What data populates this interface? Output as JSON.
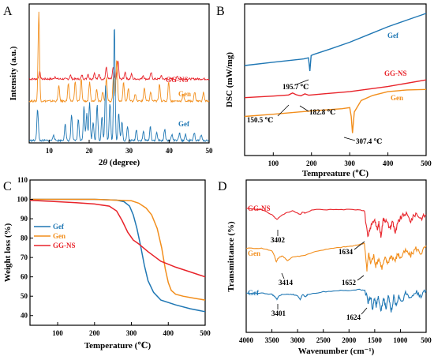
{
  "colors": {
    "gef": "#1f77b4",
    "gen": "#f28e1c",
    "ggns": "#e8232a",
    "axis": "#000000"
  },
  "chart_data": [
    {
      "panel": "A",
      "type": "line",
      "xlabel": "2θ (degree)",
      "ylabel": "Intensity (a.u.)",
      "xlim": [
        5,
        50
      ],
      "xticks": [
        "10",
        "20",
        "30",
        "40",
        "50"
      ],
      "grid": false,
      "series": [
        {
          "name": "GG-NS",
          "color": "#e8232a",
          "baseline": 100,
          "x": [
            7.6,
            11.5,
            15.3,
            18.2,
            19.7,
            21.3,
            22.5,
            24.3,
            26.0,
            27.2,
            29.0,
            30.6,
            33.5,
            35.5,
            38.0,
            42.1
          ],
          "y": [
            12,
            4,
            6,
            6,
            8,
            10,
            8,
            20,
            18,
            30,
            12,
            8,
            6,
            10,
            5,
            4
          ]
        },
        {
          "name": "Gen",
          "color": "#f28e1c",
          "baseline": 50,
          "x": [
            7.4,
            12.4,
            14.8,
            16.5,
            18.0,
            20.1,
            21.9,
            23.4,
            24.3,
            26.1,
            26.9,
            28.6,
            29.8,
            31.5,
            33.8,
            35.4,
            37.6,
            39.9,
            43.5,
            46.4,
            48.6
          ],
          "y": [
            145,
            25,
            28,
            32,
            36,
            30,
            20,
            16,
            38,
            42,
            68,
            30,
            20,
            12,
            22,
            15,
            28,
            32,
            12,
            15,
            14
          ]
        },
        {
          "name": "Gef",
          "color": "#1f77b4",
          "baseline": 0,
          "x": [
            7.1,
            11.1,
            14.0,
            15.6,
            17.3,
            18.7,
            19.4,
            20.1,
            21.0,
            22.0,
            23.2,
            24.1,
            25.2,
            26.3,
            27.4,
            28.2,
            29.6,
            31.8,
            33.6,
            35.3,
            36.9,
            38.9,
            40.7,
            42.6,
            44.1,
            46.3,
            48.0
          ],
          "y": [
            52,
            10,
            28,
            42,
            35,
            55,
            45,
            62,
            30,
            58,
            40,
            90,
            60,
            190,
            45,
            30,
            22,
            18,
            15,
            22,
            12,
            18,
            10,
            12,
            10,
            12,
            9
          ]
        }
      ]
    },
    {
      "panel": "B",
      "type": "line",
      "xlabel": "Tempreature (℃)",
      "ylabel": "DSC (mW/mg)",
      "xlim": [
        25,
        500
      ],
      "xticks": [
        "100",
        "200",
        "300",
        "400",
        "500"
      ],
      "grid": false,
      "series": [
        {
          "name": "Gef",
          "color": "#1f77b4",
          "x": [
            25,
            100,
            180,
            192,
            195.7,
            199,
            206,
            250,
            300,
            350,
            400,
            450,
            500
          ],
          "y": [
            2.0,
            2.15,
            2.3,
            2.35,
            1.75,
            2.45,
            2.5,
            2.75,
            3.05,
            3.4,
            3.75,
            4.05,
            4.35
          ]
        },
        {
          "name": "GG-NS",
          "color": "#e8232a",
          "x": [
            25,
            100,
            140,
            150.5,
            160,
            172,
            182.8,
            193,
            230,
            300,
            400,
            500
          ],
          "y": [
            0.55,
            0.62,
            0.67,
            0.76,
            0.68,
            0.63,
            0.72,
            0.66,
            0.72,
            0.82,
            1.05,
            1.35
          ]
        },
        {
          "name": "Gen",
          "color": "#f28e1c",
          "x": [
            25,
            100,
            200,
            280,
            300,
            304,
            307.4,
            312,
            330,
            360,
            400,
            450,
            500
          ],
          "y": [
            -0.3,
            -0.2,
            -0.05,
            0.05,
            0.1,
            -0.3,
            -1.05,
            -0.1,
            0.42,
            0.65,
            0.82,
            0.9,
            0.92
          ]
        }
      ],
      "annotations": [
        "195.7 ℃",
        "150.5 ℃",
        "182.8 ℃",
        "307.4 ℃"
      ]
    },
    {
      "panel": "C",
      "type": "line",
      "xlabel": "Temperature (℃)",
      "ylabel": "Weight loss (%)",
      "xlim": [
        25,
        500
      ],
      "ylim": [
        35,
        110
      ],
      "xticks": [
        "100",
        "200",
        "300",
        "400",
        "500"
      ],
      "yticks": [
        "40",
        "50",
        "60",
        "70",
        "80",
        "90",
        "100",
        "110"
      ],
      "grid": false,
      "legend": "upper-left",
      "series": [
        {
          "name": "Gef",
          "color": "#1f77b4",
          "x": [
            25,
            100,
            200,
            260,
            280,
            295,
            305,
            315,
            325,
            335,
            345,
            360,
            380,
            420,
            460,
            500
          ],
          "y": [
            100,
            100,
            100,
            99.6,
            98.8,
            96.5,
            92,
            85,
            76,
            66,
            58,
            52,
            48,
            45.5,
            43.5,
            42
          ]
        },
        {
          "name": "Gen",
          "color": "#f28e1c",
          "x": [
            25,
            100,
            200,
            300,
            320,
            340,
            355,
            370,
            382,
            392,
            400,
            408,
            420,
            440,
            470,
            500
          ],
          "y": [
            100,
            100,
            100,
            99.3,
            98,
            95.5,
            92,
            85,
            75,
            64,
            57,
            53,
            51,
            50,
            49,
            48
          ]
        },
        {
          "name": "GG-NS",
          "color": "#e8232a",
          "x": [
            25,
            80,
            150,
            200,
            240,
            260,
            275,
            290,
            305,
            320,
            345,
            380,
            400,
            420,
            460,
            500
          ],
          "y": [
            99.5,
            99,
            98.3,
            97.6,
            96.5,
            94,
            89,
            83,
            79,
            77,
            73,
            68,
            66.5,
            65,
            62.5,
            60
          ]
        }
      ]
    },
    {
      "panel": "D",
      "type": "line",
      "xlabel": "Wavenumber (cm⁻¹)",
      "ylabel": "Transmittance (%)",
      "xlim": [
        4000,
        500
      ],
      "xticks": [
        "4000",
        "3500",
        "3000",
        "2500",
        "2000",
        "1500",
        "1000",
        "500"
      ],
      "grid": false,
      "series": [
        {
          "name": "GG-NS",
          "color": "#e8232a",
          "x": [
            4000,
            3700,
            3500,
            3402,
            3300,
            3100,
            2950,
            2900,
            2850,
            2700,
            2300,
            2000,
            1800,
            1700,
            1634,
            1580,
            1500,
            1450,
            1420,
            1380,
            1330,
            1280,
            1200,
            1150,
            1100,
            1050,
            1000,
            900,
            800,
            700,
            600,
            500
          ],
          "y": [
            100,
            99,
            95,
            91,
            95,
            98,
            95,
            97,
            96,
            99,
            99,
            99,
            99,
            98,
            76,
            85,
            92,
            82,
            88,
            78,
            92,
            90,
            84,
            90,
            80,
            88,
            92,
            96,
            90,
            96,
            92,
            95
          ]
        },
        {
          "name": "Gen",
          "color": "#f28e1c",
          "x": [
            4000,
            3700,
            3500,
            3450,
            3414,
            3380,
            3300,
            3200,
            3100,
            2900,
            2600,
            2300,
            2100,
            1900,
            1800,
            1700,
            1652,
            1620,
            1580,
            1520,
            1480,
            1420,
            1360,
            1300,
            1250,
            1180,
            1100,
            1050,
            1000,
            900,
            800,
            700,
            600,
            500
          ],
          "y": [
            68,
            68,
            66,
            62,
            57,
            60,
            62,
            58,
            61,
            62,
            66,
            68,
            69,
            70,
            71,
            72,
            50,
            64,
            56,
            62,
            54,
            60,
            52,
            60,
            56,
            62,
            58,
            64,
            60,
            66,
            62,
            68,
            64,
            70
          ]
        },
        {
          "name": "Gef",
          "color": "#1f77b4",
          "x": [
            4000,
            3700,
            3500,
            3440,
            3401,
            3360,
            3300,
            3200,
            3100,
            3000,
            2950,
            2900,
            2850,
            2800,
            2500,
            2200,
            2000,
            1800,
            1700,
            1650,
            1624,
            1580,
            1540,
            1500,
            1470,
            1430,
            1380,
            1330,
            1280,
            1230,
            1180,
            1130,
            1080,
            1030,
            980,
            900,
            800,
            700,
            600,
            500
          ],
          "y": [
            32,
            32,
            31,
            29,
            27,
            30,
            31,
            31,
            31,
            30,
            27,
            31,
            29,
            31,
            33,
            34,
            34,
            35,
            34,
            30,
            24,
            30,
            19,
            29,
            21,
            30,
            17,
            28,
            20,
            31,
            16,
            29,
            22,
            30,
            25,
            32,
            28,
            33,
            30,
            34
          ]
        }
      ],
      "annotations": [
        "3402",
        "1634",
        "3414",
        "1652",
        "3401",
        "1624"
      ]
    }
  ]
}
